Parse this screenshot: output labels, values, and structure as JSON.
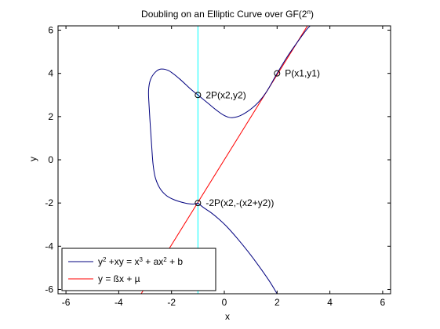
{
  "chart_data": {
    "type": "line",
    "title": {
      "main": "Doubling on an Elliptic Curve over GF(2",
      "sup": "n",
      "end": ")"
    },
    "xlabel": "x",
    "ylabel": "y",
    "xlim": [
      -6.3,
      6.3
    ],
    "ylim": [
      -6.2,
      6.2
    ],
    "xticks": [
      -6,
      -4,
      -2,
      0,
      2,
      4,
      6
    ],
    "yticks": [
      -6,
      -4,
      -2,
      0,
      2,
      4,
      6
    ],
    "grid": false,
    "legend_position": "bottom-left",
    "series": [
      {
        "name": "curve",
        "color": "#00007f",
        "legend": [
          {
            "t": "y"
          },
          {
            "t": "2",
            "sup": true
          },
          {
            "t": " +xy = x"
          },
          {
            "t": "3",
            "sup": true
          },
          {
            "t": " + ax"
          },
          {
            "t": "2",
            "sup": true
          },
          {
            "t": " + b"
          }
        ],
        "loop": [
          [
            -1.0,
            -2.0
          ],
          [
            -1.2,
            -2.05
          ],
          [
            -1.5,
            -2.0
          ],
          [
            -1.9,
            -1.85
          ],
          [
            -2.2,
            -1.65
          ],
          [
            -2.45,
            -1.3
          ],
          [
            -2.62,
            -0.8
          ],
          [
            -2.7,
            -0.2
          ],
          [
            -2.75,
            0.6
          ],
          [
            -2.8,
            1.5
          ],
          [
            -2.85,
            2.5
          ],
          [
            -2.87,
            3.2
          ],
          [
            -2.8,
            3.7
          ],
          [
            -2.62,
            4.05
          ],
          [
            -2.4,
            4.2
          ],
          [
            -2.1,
            4.12
          ],
          [
            -1.7,
            3.75
          ],
          [
            -1.3,
            3.3
          ],
          [
            -1.0,
            3.0
          ],
          [
            -0.6,
            2.6
          ],
          [
            -0.3,
            2.3
          ],
          [
            0.0,
            2.05
          ],
          [
            0.3,
            1.95
          ],
          [
            0.7,
            2.1
          ],
          [
            1.2,
            2.55
          ],
          [
            1.6,
            3.15
          ],
          [
            2.0,
            4.0
          ],
          [
            2.4,
            4.8
          ],
          [
            2.8,
            5.5
          ],
          [
            3.1,
            6.0
          ],
          [
            3.25,
            6.2
          ]
        ],
        "branch": [
          [
            -1.0,
            -2.0
          ],
          [
            -0.8,
            -2.2
          ],
          [
            -0.5,
            -2.45
          ],
          [
            -0.2,
            -2.75
          ],
          [
            0.1,
            -3.1
          ],
          [
            0.5,
            -3.65
          ],
          [
            0.9,
            -4.25
          ],
          [
            1.3,
            -4.9
          ],
          [
            1.7,
            -5.6
          ],
          [
            2.0,
            -6.2
          ]
        ]
      },
      {
        "name": "line",
        "color": "#ff0000",
        "legend": [
          {
            "t": "y = ßx + µ"
          }
        ],
        "points": [
          [
            -3.15,
            -6.2
          ],
          [
            3.15,
            6.2
          ]
        ]
      },
      {
        "name": "vertical",
        "color": "#00ffff",
        "x": -1.0
      }
    ],
    "annotations": [
      {
        "x": 2.0,
        "y": 4.0,
        "label": "P(x1,y1)"
      },
      {
        "x": -1.0,
        "y": 3.0,
        "label": "2P(x2,y2)"
      },
      {
        "x": -1.0,
        "y": -2.0,
        "label": "-2P(x2,-(x2+y2))"
      }
    ]
  }
}
